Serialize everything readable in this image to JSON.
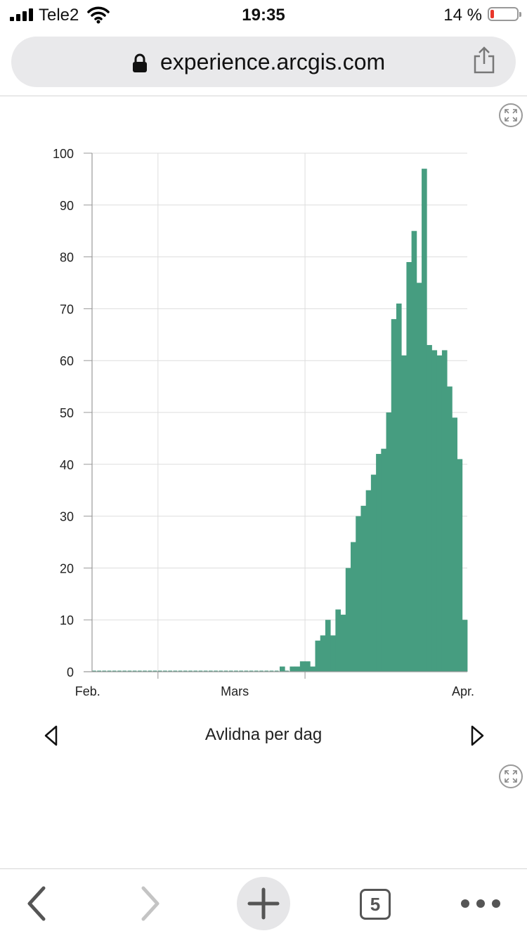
{
  "status_bar": {
    "carrier": "Tele2",
    "time": "19:35",
    "battery_percent": "14 %",
    "battery_level": 0.14,
    "icons": [
      "signal-icon",
      "wifi-icon",
      "battery-icon"
    ]
  },
  "browser": {
    "url": "experience.arcgis.com",
    "icons": [
      "lock-icon",
      "share-icon"
    ]
  },
  "chart_nav": {
    "caption": "Avlidna per dag"
  },
  "toolbar": {
    "tab_count": "5",
    "icons": [
      "back-icon",
      "forward-icon",
      "plus-icon",
      "tabs-icon",
      "more-icon"
    ]
  },
  "colors": {
    "bar": "#469d80",
    "grid": "#dddddd",
    "axis": "#999999"
  },
  "chart_data": {
    "type": "bar",
    "title": "",
    "xlabel": "",
    "ylabel": "",
    "ylim": [
      0,
      100
    ],
    "yticks": [
      "0",
      "10",
      "20",
      "30",
      "40",
      "50",
      "60",
      "70",
      "80",
      "90",
      "100"
    ],
    "xtick_labels": [
      {
        "label": "Feb.",
        "date": "2020-02-01"
      },
      {
        "label": "Mars",
        "date": "2020-03-01"
      },
      {
        "label": "Apr.",
        "date": "2020-04-01"
      }
    ],
    "grid": true,
    "series": [
      {
        "dates": [
          "2020-01-19",
          "2020-01-20",
          "2020-01-21",
          "2020-01-22",
          "2020-01-23",
          "2020-01-24",
          "2020-01-25",
          "2020-01-26",
          "2020-01-27",
          "2020-01-28",
          "2020-01-29",
          "2020-01-30",
          "2020-01-31",
          "2020-02-01",
          "2020-02-02",
          "2020-02-03",
          "2020-02-04",
          "2020-02-05",
          "2020-02-06",
          "2020-02-07",
          "2020-02-08",
          "2020-02-09",
          "2020-02-10",
          "2020-02-11",
          "2020-02-12",
          "2020-02-13",
          "2020-02-14",
          "2020-02-15",
          "2020-02-16",
          "2020-02-17",
          "2020-02-18",
          "2020-02-19",
          "2020-02-20",
          "2020-02-21",
          "2020-02-22",
          "2020-02-23",
          "2020-02-24",
          "2020-02-25",
          "2020-02-26",
          "2020-02-27",
          "2020-02-28",
          "2020-02-29",
          "2020-03-01",
          "2020-03-02",
          "2020-03-03",
          "2020-03-04",
          "2020-03-05",
          "2020-03-06",
          "2020-03-07",
          "2020-03-08",
          "2020-03-09",
          "2020-03-10",
          "2020-03-11",
          "2020-03-12",
          "2020-03-13",
          "2020-03-14",
          "2020-03-15",
          "2020-03-16",
          "2020-03-17",
          "2020-03-18",
          "2020-03-19",
          "2020-03-20",
          "2020-03-21",
          "2020-03-22",
          "2020-03-23",
          "2020-03-24",
          "2020-03-25",
          "2020-03-26",
          "2020-03-27",
          "2020-03-28",
          "2020-03-29",
          "2020-03-30",
          "2020-03-31",
          "2020-04-01"
        ],
        "values": [
          0,
          0,
          0,
          0,
          0,
          0,
          0,
          0,
          0,
          0,
          0,
          0,
          0,
          0,
          0,
          0,
          0,
          0,
          0,
          0,
          0,
          0,
          0,
          0,
          0,
          0,
          0,
          0,
          0,
          0,
          0,
          0,
          0,
          0,
          0,
          0,
          0,
          1,
          0,
          1,
          1,
          2,
          2,
          1,
          6,
          7,
          10,
          7,
          12,
          11,
          20,
          25,
          30,
          32,
          35,
          38,
          42,
          43,
          50,
          68,
          71,
          61,
          79,
          85,
          75,
          97,
          63,
          62,
          61,
          62,
          55,
          49,
          41,
          10
        ]
      }
    ]
  }
}
